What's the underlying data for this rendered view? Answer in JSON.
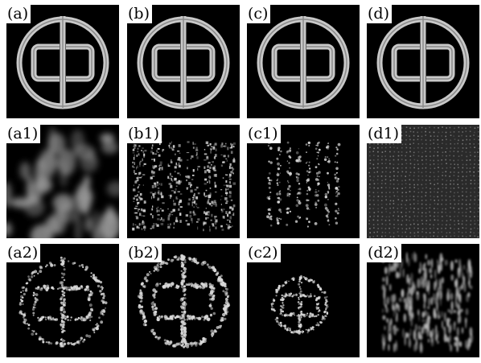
{
  "figure": {
    "panels": [
      {
        "id": "a",
        "label": "(a)",
        "kind": "emblem",
        "style": "sharp"
      },
      {
        "id": "b",
        "label": "(b)",
        "kind": "emblem",
        "style": "sharp"
      },
      {
        "id": "c",
        "label": "(c)",
        "kind": "emblem",
        "style": "sharp"
      },
      {
        "id": "d",
        "label": "(d)",
        "kind": "emblem",
        "style": "sharp"
      },
      {
        "id": "a1",
        "label": "(a1)",
        "kind": "hologram",
        "style": "blurred-blobs"
      },
      {
        "id": "b1",
        "label": "(b1)",
        "kind": "hologram",
        "style": "speckle-columns"
      },
      {
        "id": "c1",
        "label": "(c1)",
        "kind": "hologram",
        "style": "dot-grid"
      },
      {
        "id": "d1",
        "label": "(d1)",
        "kind": "hologram",
        "style": "fine-texture"
      },
      {
        "id": "a2",
        "label": "(a2)",
        "kind": "emblem",
        "style": "speckled"
      },
      {
        "id": "b2",
        "label": "(b2)",
        "kind": "emblem",
        "style": "speckled-bright"
      },
      {
        "id": "c2",
        "label": "(c2)",
        "kind": "emblem",
        "style": "dotted-small"
      },
      {
        "id": "d2",
        "label": "(d2)",
        "kind": "emblem",
        "style": "smeared"
      }
    ]
  },
  "colors": {
    "background": "#000000",
    "emblem": "#c8c8c8",
    "speckle": "#d8d8d8",
    "label_bg": "#ffffff",
    "label_text": "#000000"
  }
}
